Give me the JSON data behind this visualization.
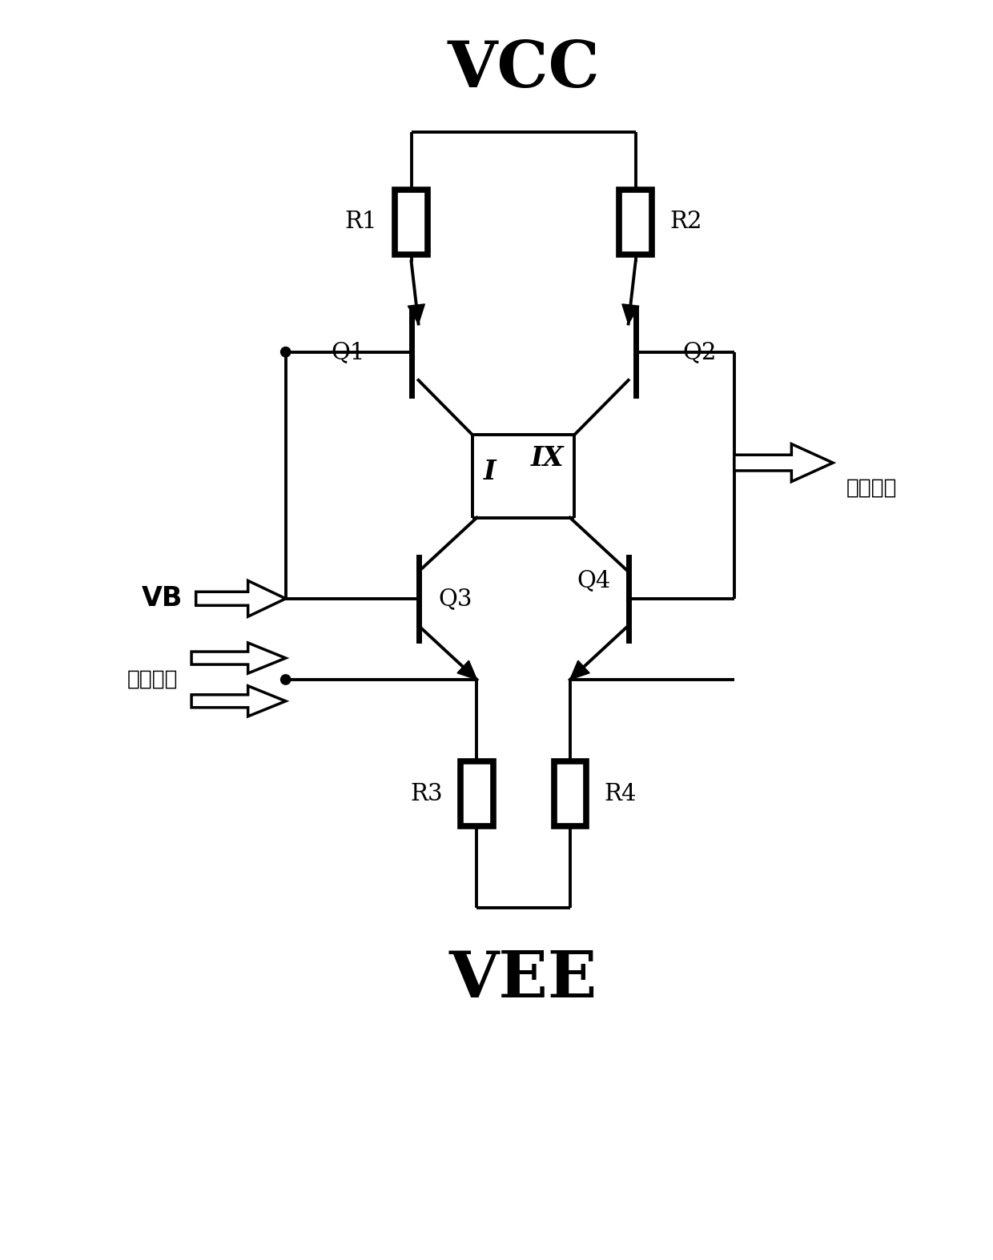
{
  "background_color": "#ffffff",
  "line_color": "#000000",
  "fig_width": 12.4,
  "fig_height": 15.74,
  "vcc_label": "VCC",
  "vee_label": "VEE",
  "vb_label": "VB",
  "signal_in_label": "信号输入",
  "signal_out_label": "信号输出",
  "r1_label": "R1",
  "r2_label": "R2",
  "r3_label": "R3",
  "r4_label": "R4",
  "q1_label": "Q1",
  "q2_label": "Q2",
  "q3_label": "Q3",
  "q4_label": "Q4",
  "i_label": "I",
  "ix_label": "IX",
  "lw": 2.8,
  "lw_thick": 5.0,
  "lw_res": 5.5
}
